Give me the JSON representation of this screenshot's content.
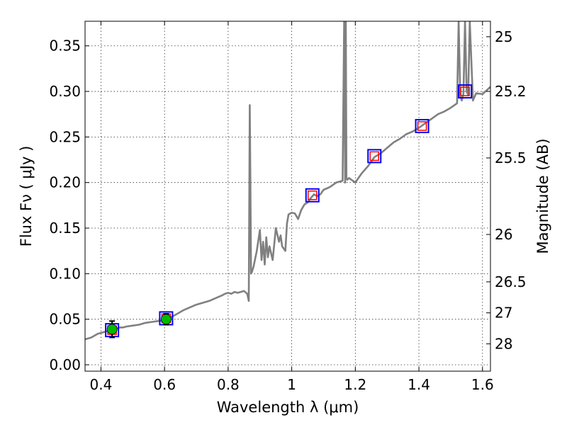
{
  "chart_data": {
    "type": "line",
    "title": "",
    "xlabel": "Wavelength  λ (μm)",
    "ylabel": "Flux  Fν  ( μJy )",
    "y2label": "Magnitude (AB)",
    "xlim": [
      0.35,
      1.625
    ],
    "ylim": [
      -0.007,
      0.377
    ],
    "grid": true,
    "xticks": [
      0.4,
      0.6,
      0.8,
      1.0,
      1.2,
      1.4,
      1.6
    ],
    "xtick_labels": [
      "0.4",
      "0.6",
      "0.8",
      "1",
      "1.2",
      "1.4",
      "1.6"
    ],
    "yticks": [
      0.0,
      0.05,
      0.1,
      0.15,
      0.2,
      0.25,
      0.3,
      0.35
    ],
    "ytick_labels": [
      "0.00",
      "0.05",
      "0.10",
      "0.15",
      "0.20",
      "0.25",
      "0.30",
      "0.35"
    ],
    "y2ticks": [
      {
        "label": "25",
        "flux": 0.36
      },
      {
        "label": "25.2",
        "flux": 0.3
      },
      {
        "label": "25.5",
        "flux": 0.227
      },
      {
        "label": "26",
        "flux": 0.143
      },
      {
        "label": "26.5",
        "flux": 0.091
      },
      {
        "label": "27",
        "flux": 0.057
      },
      {
        "label": "28",
        "flux": 0.023
      }
    ],
    "colors": {
      "model": "#808080",
      "observed_marker": "#00bb00",
      "model_band_box": "#0000ff",
      "model_band_inner": "#ff0000"
    },
    "series": [
      {
        "type": "line",
        "x": [
          0.35,
          0.36,
          0.37,
          0.38,
          0.39,
          0.4,
          0.41,
          0.42,
          0.43,
          0.44,
          0.45,
          0.46,
          0.47,
          0.48,
          0.5,
          0.52,
          0.54,
          0.56,
          0.58,
          0.6,
          0.61,
          0.62,
          0.63,
          0.64,
          0.65,
          0.66,
          0.68,
          0.7,
          0.72,
          0.74,
          0.76,
          0.78,
          0.79,
          0.8,
          0.81,
          0.82,
          0.83,
          0.84,
          0.85,
          0.86,
          0.865,
          0.868,
          0.87,
          0.872,
          0.875,
          0.88,
          0.89,
          0.9,
          0.905,
          0.91,
          0.915,
          0.92,
          0.925,
          0.93,
          0.94,
          0.95,
          0.96,
          0.965,
          0.97,
          0.98,
          0.985,
          0.99,
          1.0,
          1.01,
          1.02,
          1.03,
          1.04,
          1.05,
          1.06,
          1.07,
          1.08,
          1.09,
          1.1,
          1.12,
          1.14,
          1.16,
          1.165,
          1.168,
          1.17,
          1.172,
          1.175,
          1.18,
          1.2,
          1.22,
          1.24,
          1.26,
          1.28,
          1.3,
          1.32,
          1.34,
          1.36,
          1.38,
          1.4,
          1.42,
          1.44,
          1.46,
          1.48,
          1.5,
          1.52,
          1.525,
          1.53,
          1.535,
          1.54,
          1.545,
          1.55,
          1.555,
          1.56,
          1.57,
          1.58,
          1.6,
          1.625
        ],
        "y": [
          0.028,
          0.029,
          0.03,
          0.032,
          0.034,
          0.035,
          0.036,
          0.037,
          0.038,
          0.039,
          0.04,
          0.041,
          0.041,
          0.042,
          0.043,
          0.044,
          0.046,
          0.047,
          0.048,
          0.049,
          0.05,
          0.052,
          0.054,
          0.056,
          0.058,
          0.06,
          0.063,
          0.066,
          0.068,
          0.07,
          0.073,
          0.076,
          0.078,
          0.079,
          0.078,
          0.08,
          0.079,
          0.08,
          0.081,
          0.078,
          0.07,
          0.285,
          0.2,
          0.1,
          0.102,
          0.108,
          0.125,
          0.148,
          0.115,
          0.135,
          0.11,
          0.14,
          0.118,
          0.13,
          0.115,
          0.15,
          0.135,
          0.142,
          0.13,
          0.125,
          0.155,
          0.165,
          0.167,
          0.166,
          0.16,
          0.17,
          0.176,
          0.178,
          0.183,
          0.187,
          0.185,
          0.187,
          0.192,
          0.195,
          0.2,
          0.202,
          0.377,
          0.2,
          0.377,
          0.205,
          0.203,
          0.205,
          0.2,
          0.21,
          0.218,
          0.228,
          0.232,
          0.238,
          0.244,
          0.248,
          0.253,
          0.256,
          0.26,
          0.265,
          0.27,
          0.275,
          0.278,
          0.282,
          0.287,
          0.377,
          0.295,
          0.29,
          0.298,
          0.377,
          0.3,
          0.296,
          0.377,
          0.29,
          0.298,
          0.297,
          0.305
        ]
      },
      {
        "type": "scatter",
        "marker": "circle",
        "x": [
          0.435,
          0.605
        ],
        "y": [
          0.039,
          0.05
        ],
        "yerr": [
          0.009,
          0.006
        ]
      },
      {
        "type": "scatter",
        "marker": "square",
        "x": [
          0.435,
          0.605,
          1.065,
          1.26,
          1.41,
          1.545
        ],
        "y": [
          0.038,
          0.051,
          0.186,
          0.229,
          0.262,
          0.3
        ]
      }
    ]
  }
}
